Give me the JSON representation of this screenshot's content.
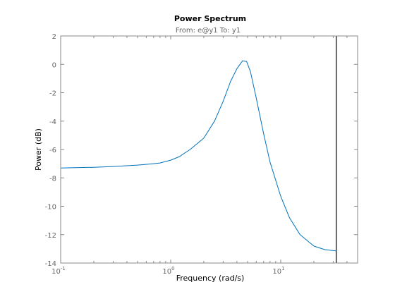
{
  "chart_data": {
    "type": "line",
    "title": "Power Spectrum",
    "subtitle": "From: e@y1  To: y1",
    "xlabel": "Frequency  (rad/s)",
    "ylabel": "Power (dB)",
    "xscale": "log",
    "xlim": [
      0.1,
      50
    ],
    "ylim": [
      -14,
      2
    ],
    "grid": false,
    "xticks": [
      {
        "value": 0.1,
        "base": "10",
        "exp": "-1"
      },
      {
        "value": 1,
        "base": "10",
        "exp": "0"
      },
      {
        "value": 10,
        "base": "10",
        "exp": "1"
      }
    ],
    "yticks": [
      2,
      0,
      -2,
      -4,
      -6,
      -8,
      -10,
      -12,
      -14
    ],
    "series": [
      {
        "color": "#0072bd",
        "x": [
          0.1,
          0.2,
          0.3,
          0.5,
          0.7,
          0.8,
          1.0,
          1.2,
          1.5,
          2.0,
          2.5,
          3.0,
          3.5,
          4.0,
          4.5,
          4.9,
          5.3,
          6.0,
          7.0,
          8.0,
          10.0,
          12.0,
          15.0,
          20.0,
          25.0,
          32.0
        ],
        "y": [
          -7.3,
          -7.25,
          -7.2,
          -7.1,
          -7.0,
          -6.95,
          -6.75,
          -6.5,
          -6.0,
          -5.2,
          -4.0,
          -2.6,
          -1.2,
          -0.3,
          0.25,
          0.2,
          -0.5,
          -2.4,
          -4.9,
          -6.9,
          -9.3,
          -10.8,
          -12.0,
          -12.8,
          -13.05,
          -13.15
        ]
      }
    ],
    "vline": {
      "x": 32,
      "color": "#000000"
    }
  }
}
